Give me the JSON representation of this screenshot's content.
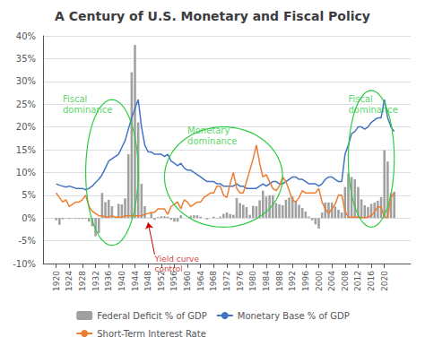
{
  "chart_data": {
    "type": "bar",
    "title": "A Century of U.S. Monetary and Fiscal Policy",
    "x": [
      1920,
      1921,
      1922,
      1923,
      1924,
      1925,
      1926,
      1927,
      1928,
      1929,
      1930,
      1931,
      1932,
      1933,
      1934,
      1935,
      1936,
      1937,
      1938,
      1939,
      1940,
      1941,
      1942,
      1943,
      1944,
      1945,
      1946,
      1947,
      1948,
      1949,
      1950,
      1951,
      1952,
      1953,
      1954,
      1955,
      1956,
      1957,
      1958,
      1959,
      1960,
      1961,
      1962,
      1963,
      1964,
      1965,
      1966,
      1967,
      1968,
      1969,
      1970,
      1971,
      1972,
      1973,
      1974,
      1975,
      1976,
      1977,
      1978,
      1979,
      1980,
      1981,
      1982,
      1983,
      1984,
      1985,
      1986,
      1987,
      1988,
      1989,
      1990,
      1991,
      1992,
      1993,
      1994,
      1995,
      1996,
      1997,
      1998,
      1999,
      2000,
      2001,
      2002,
      2003,
      2004,
      2005,
      2006,
      2007,
      2008,
      2009,
      2010,
      2011,
      2012,
      2013,
      2014,
      2015,
      2016,
      2017,
      2018,
      2019,
      2020,
      2021,
      2022,
      2023
    ],
    "series": [
      {
        "name": "Federal Deficit % of GDP",
        "type": "bar",
        "color": "#a0a0a0",
        "values": [
          -0.5,
          -1.5,
          -0.3,
          -0.1,
          -0.2,
          -0.1,
          -0.2,
          -0.2,
          -0.2,
          -0.2,
          -0.8,
          -1.8,
          -4.0,
          -3.3,
          5.5,
          3.5,
          4.0,
          2.6,
          0.1,
          3.1,
          3.0,
          4.3,
          14.0,
          32.0,
          38.0,
          21.0,
          7.5,
          2.6,
          0.1,
          1.2,
          -0.4,
          0.2,
          0.4,
          0.4,
          0.3,
          -0.4,
          -0.8,
          -0.8,
          0.6,
          0.0,
          0.0,
          0.5,
          0.6,
          0.6,
          0.3,
          0.0,
          -0.3,
          0.0,
          0.3,
          -0.1,
          0.3,
          0.9,
          1.2,
          0.9,
          0.7,
          4.4,
          3.3,
          2.9,
          2.4,
          0.7,
          2.7,
          2.6,
          3.9,
          6.0,
          4.7,
          5.0,
          5.0,
          3.3,
          3.0,
          2.8,
          4.0,
          4.5,
          4.7,
          3.7,
          2.9,
          2.2,
          1.4,
          0.3,
          -0.5,
          -1.4,
          -2.3,
          1.2,
          3.4,
          3.4,
          3.4,
          2.5,
          1.8,
          1.2,
          6.8,
          9.8,
          9.0,
          8.5,
          6.8,
          4.1,
          2.8,
          2.4,
          3.1,
          3.4,
          3.8,
          4.6,
          14.9,
          12.4,
          5.5,
          5.8
        ]
      },
      {
        "name": "Monetary Base % of GDP",
        "type": "line",
        "color": "#4472c4",
        "values": [
          7.5,
          7.2,
          7.0,
          6.8,
          7.0,
          6.8,
          6.5,
          6.5,
          6.5,
          6.2,
          6.5,
          7.0,
          7.8,
          8.5,
          9.5,
          11.0,
          12.5,
          13.0,
          13.5,
          14.0,
          15.5,
          17.0,
          19.5,
          22.0,
          24.0,
          26.0,
          20.0,
          16.0,
          14.5,
          14.5,
          14.0,
          14.0,
          14.0,
          13.5,
          14.0,
          12.5,
          12.0,
          11.5,
          12.0,
          11.0,
          10.5,
          10.5,
          10.0,
          9.5,
          9.0,
          8.5,
          8.0,
          8.0,
          8.0,
          7.5,
          7.5,
          7.0,
          7.0,
          7.0,
          7.0,
          7.5,
          7.0,
          7.0,
          6.5,
          6.5,
          6.5,
          6.5,
          7.0,
          7.5,
          7.0,
          7.5,
          8.0,
          8.0,
          7.5,
          7.5,
          8.0,
          8.5,
          9.0,
          9.0,
          8.5,
          8.5,
          8.0,
          7.5,
          7.5,
          7.5,
          7.0,
          7.5,
          8.5,
          9.0,
          9.0,
          8.5,
          8.0,
          8.0,
          14.0,
          16.0,
          18.5,
          19.0,
          20.0,
          20.0,
          19.5,
          20.0,
          21.0,
          21.5,
          22.0,
          22.0,
          26.0,
          22.0,
          20.0,
          19.0
        ]
      },
      {
        "name": "Short-Term Interest Rate",
        "type": "line",
        "color": "#ed7d31",
        "values": [
          5.5,
          4.5,
          3.5,
          4.0,
          2.5,
          3.0,
          3.5,
          3.5,
          4.0,
          5.0,
          2.5,
          1.5,
          1.0,
          0.5,
          0.5,
          0.2,
          0.2,
          0.5,
          0.2,
          0.2,
          0.2,
          0.5,
          0.5,
          0.5,
          0.5,
          0.5,
          0.5,
          0.8,
          1.0,
          1.2,
          1.2,
          2.0,
          2.0,
          2.0,
          0.8,
          2.5,
          3.0,
          3.5,
          2.0,
          4.0,
          3.5,
          2.5,
          3.0,
          3.5,
          3.5,
          4.5,
          5.0,
          5.5,
          5.5,
          7.0,
          7.0,
          5.0,
          4.5,
          7.5,
          10.0,
          6.5,
          5.5,
          5.5,
          8.0,
          10.5,
          13.0,
          16.0,
          12.0,
          9.0,
          9.5,
          8.0,
          6.5,
          6.0,
          7.0,
          9.0,
          8.0,
          6.0,
          4.0,
          3.5,
          4.5,
          6.0,
          5.5,
          5.5,
          5.5,
          5.5,
          6.5,
          3.5,
          2.0,
          1.0,
          2.0,
          3.0,
          5.0,
          5.0,
          1.5,
          0.2,
          0.2,
          0.2,
          0.2,
          0.1,
          0.1,
          0.2,
          0.5,
          1.3,
          2.5,
          2.4,
          0.2,
          0.1,
          4.5,
          5.5
        ]
      }
    ],
    "xlim": [
      1916,
      2028
    ],
    "xticks": [
      1920,
      1924,
      1928,
      1932,
      1936,
      1940,
      1944,
      1948,
      1952,
      1956,
      1960,
      1964,
      1968,
      1972,
      1976,
      1980,
      1984,
      1988,
      1992,
      1996,
      2000,
      2004,
      2008,
      2012,
      2016,
      2020
    ],
    "ylim": [
      -10,
      40
    ],
    "yticks": [
      {
        "value": -10,
        "label": "-10%"
      },
      {
        "value": -5,
        "label": "-5%"
      },
      {
        "value": 0,
        "label": "0%"
      },
      {
        "value": 5,
        "label": "5%"
      },
      {
        "value": 10,
        "label": "10%"
      },
      {
        "value": 15,
        "label": "15%"
      },
      {
        "value": 20,
        "label": "20%"
      },
      {
        "value": 25,
        "label": "25%"
      },
      {
        "value": 30,
        "label": "30%"
      },
      {
        "value": 35,
        "label": "35%"
      },
      {
        "value": 40,
        "label": "40%"
      }
    ],
    "grid": true,
    "legend": "bottom",
    "ellipses": [
      {
        "cx": 1937,
        "cy": 10,
        "w": 16,
        "h": 32,
        "color": "#2ecc40"
      },
      {
        "cx": 1971,
        "cy": 9,
        "w": 36,
        "h": 22,
        "color": "#2ecc40"
      },
      {
        "cx": 2016,
        "cy": 13,
        "w": 14,
        "h": 30,
        "color": "#2ecc40"
      }
    ],
    "annotations": [
      {
        "text": "Fiscal\ndominance",
        "x": 1922,
        "y": 25,
        "color": "#2ecc40"
      },
      {
        "text": "Monetary\ndominance",
        "x": 1960,
        "y": 18,
        "color": "#2ecc40"
      },
      {
        "text": "Fiscal\ndominance",
        "x": 2009,
        "y": 25,
        "color": "#2ecc40"
      },
      {
        "text": "Yield curve\ncontrol",
        "x": 1950,
        "y": -8,
        "arrow_x": 1948,
        "arrow_y": -1,
        "color": "#cc0000"
      }
    ]
  }
}
